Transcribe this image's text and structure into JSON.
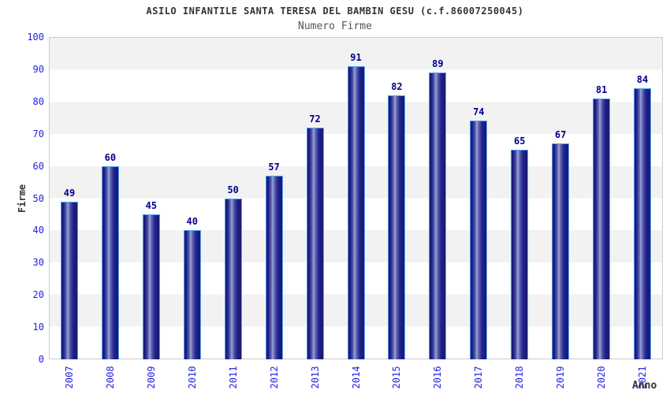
{
  "chart_data": {
    "type": "bar",
    "title": "ASILO INFANTILE SANTA TERESA DEL BAMBIN GESU (c.f.86007250045)",
    "subtitle": "Numero Firme",
    "xlabel": "Anno",
    "ylabel": "Firme",
    "categories": [
      "2007",
      "2008",
      "2009",
      "2010",
      "2011",
      "2012",
      "2013",
      "2014",
      "2015",
      "2016",
      "2017",
      "2018",
      "2019",
      "2020",
      "2021"
    ],
    "values": [
      49,
      60,
      45,
      40,
      50,
      57,
      72,
      91,
      82,
      89,
      74,
      65,
      67,
      81,
      84
    ],
    "ylim": [
      0,
      100
    ],
    "ytick_step": 10,
    "yticks": [
      0,
      10,
      20,
      30,
      40,
      50,
      60,
      70,
      80,
      90,
      100
    ],
    "legend": "none",
    "grid": "alternating horizontal bands every 10 units",
    "colors": {
      "bar_dark": "#23238e",
      "bar_highlight": "#9ba3d4",
      "bar_border": "#55a0f5",
      "value_label": "#000090",
      "tick_label": "#2222de",
      "band_gray": "#f2f2f2",
      "band_white": "#ffffff",
      "plot_border": "#cccccc",
      "title_color": "#333333",
      "subtitle_color": "#555555"
    }
  }
}
